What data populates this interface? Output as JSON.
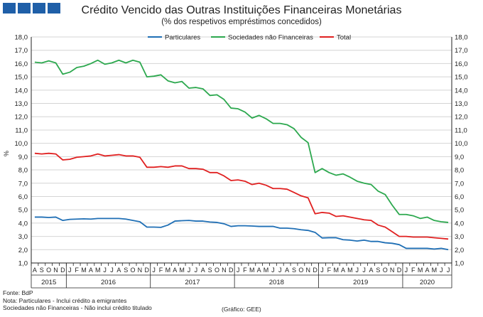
{
  "header": {
    "title": "Crédito Vencido das Outras Instituições Financeiras Monetárias",
    "subtitle": "(% dos respetivos empréstimos concedidos)",
    "logo_colors": [
      "#1f5fa8",
      "#1f5fa8",
      "#1f5fa8",
      "#1f5fa8"
    ]
  },
  "footer": {
    "source": "Fonte: BdP",
    "note_1": "Nota: Particulares - Inclui crédito a emigrantes",
    "note_2": "Sociedades não Financeiras - Não inclui crédito titulado",
    "credit": "(Gráfico: GEE)"
  },
  "chart_data": {
    "type": "line",
    "ylabel": "%",
    "ylim": [
      1.0,
      18.0
    ],
    "y_ticks": [
      "1,0",
      "2,0",
      "3,0",
      "4,0",
      "5,0",
      "6,0",
      "7,0",
      "8,0",
      "9,0",
      "10,0",
      "11,0",
      "12,0",
      "13,0",
      "14,0",
      "15,0",
      "16,0",
      "17,0",
      "18,0"
    ],
    "grid": "horizontal",
    "legend_position": "top",
    "x": [
      "A",
      "S",
      "O",
      "N",
      "D",
      "J",
      "F",
      "M",
      "A",
      "M",
      "J",
      "J",
      "A",
      "S",
      "O",
      "N",
      "D",
      "J",
      "F",
      "M",
      "A",
      "M",
      "J",
      "J",
      "A",
      "S",
      "O",
      "N",
      "D",
      "J",
      "F",
      "M",
      "A",
      "M",
      "J",
      "J",
      "A",
      "S",
      "O",
      "N",
      "D",
      "J",
      "F",
      "M",
      "A",
      "M",
      "J",
      "J",
      "A",
      "S",
      "O",
      "N",
      "D",
      "J",
      "F",
      "M",
      "A",
      "M",
      "J",
      "J"
    ],
    "years": [
      {
        "label": "2015",
        "start": 0,
        "end": 4
      },
      {
        "label": "2016",
        "start": 5,
        "end": 16
      },
      {
        "label": "2017",
        "start": 17,
        "end": 28
      },
      {
        "label": "2018",
        "start": 29,
        "end": 40
      },
      {
        "label": "2019",
        "start": 41,
        "end": 52
      },
      {
        "label": "2020",
        "start": 53,
        "end": 59
      }
    ],
    "series": [
      {
        "name": "Particulares",
        "color": "#1f6fb5",
        "values": [
          4.45,
          4.45,
          4.42,
          4.45,
          4.2,
          4.28,
          4.3,
          4.32,
          4.3,
          4.35,
          4.35,
          4.35,
          4.35,
          4.3,
          4.2,
          4.1,
          3.7,
          3.7,
          3.68,
          3.85,
          4.15,
          4.18,
          4.2,
          4.15,
          4.15,
          4.08,
          4.05,
          3.95,
          3.75,
          3.8,
          3.8,
          3.78,
          3.75,
          3.75,
          3.75,
          3.62,
          3.62,
          3.58,
          3.5,
          3.45,
          3.3,
          2.88,
          2.9,
          2.9,
          2.75,
          2.72,
          2.65,
          2.72,
          2.62,
          2.62,
          2.52,
          2.48,
          2.38,
          2.1,
          2.1,
          2.1,
          2.1,
          2.05,
          2.1,
          2.0
        ]
      },
      {
        "name": "Sociedades não Financeiras",
        "color": "#2ca84e",
        "values": [
          16.1,
          16.05,
          16.2,
          16.05,
          15.2,
          15.35,
          15.7,
          15.8,
          16.0,
          16.25,
          15.95,
          16.05,
          16.25,
          16.05,
          16.25,
          16.1,
          15.0,
          15.05,
          15.15,
          14.7,
          14.55,
          14.65,
          14.15,
          14.2,
          14.1,
          13.6,
          13.65,
          13.3,
          12.65,
          12.6,
          12.35,
          11.9,
          12.1,
          11.85,
          11.5,
          11.5,
          11.4,
          11.1,
          10.45,
          10.05,
          7.8,
          8.1,
          7.8,
          7.6,
          7.7,
          7.45,
          7.15,
          7.0,
          6.9,
          6.4,
          6.15,
          5.35,
          4.65,
          4.65,
          4.55,
          4.35,
          4.45,
          4.2,
          4.1,
          4.05
        ]
      },
      {
        "name": "Total",
        "color": "#e02020",
        "values": [
          9.25,
          9.2,
          9.25,
          9.2,
          8.75,
          8.8,
          8.95,
          9.0,
          9.05,
          9.2,
          9.05,
          9.1,
          9.15,
          9.05,
          9.05,
          8.95,
          8.2,
          8.2,
          8.25,
          8.2,
          8.3,
          8.3,
          8.1,
          8.1,
          8.05,
          7.8,
          7.8,
          7.55,
          7.2,
          7.25,
          7.15,
          6.9,
          7.0,
          6.85,
          6.6,
          6.6,
          6.55,
          6.3,
          6.05,
          5.9,
          4.7,
          4.8,
          4.75,
          4.5,
          4.55,
          4.45,
          4.35,
          4.25,
          4.2,
          3.85,
          3.7,
          3.35,
          3.0,
          3.0,
          2.95,
          2.95,
          2.95,
          2.9,
          2.85,
          2.8
        ]
      }
    ]
  }
}
